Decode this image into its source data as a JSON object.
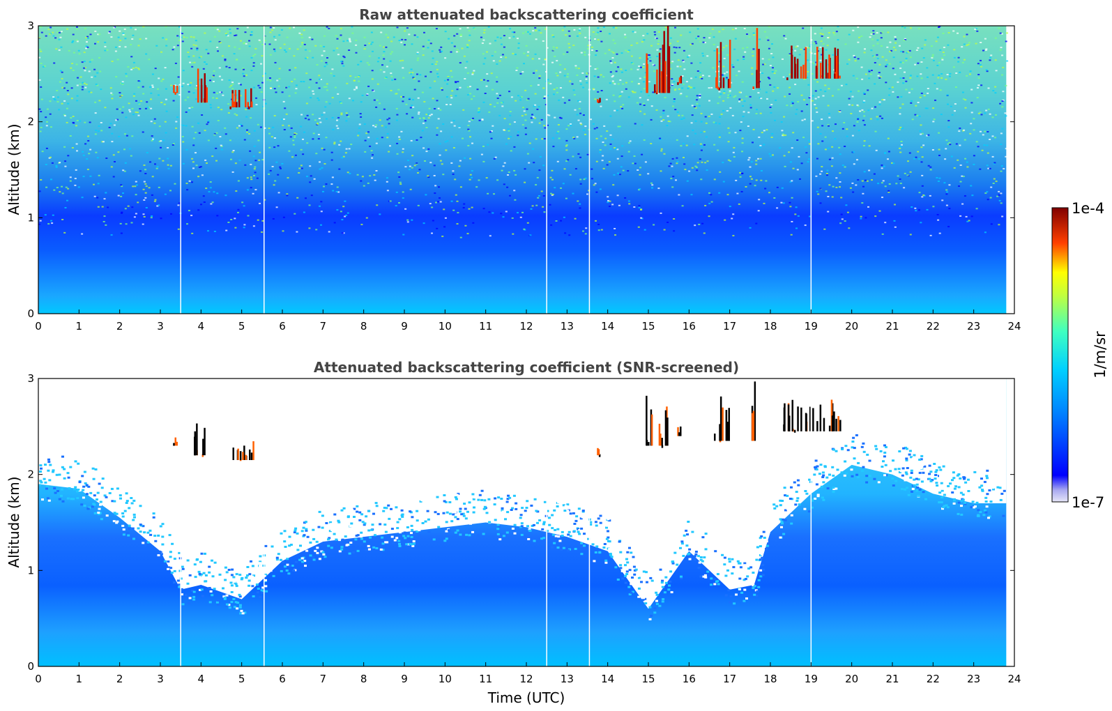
{
  "chart_data": [
    {
      "type": "heatmap",
      "title": "Raw attenuated backscattering coefficient",
      "xlabel": "",
      "ylabel": "Altitude (km)",
      "xlim": [
        0,
        24
      ],
      "ylim": [
        0,
        3
      ],
      "xticks": [
        "0",
        "1",
        "2",
        "3",
        "4",
        "5",
        "6",
        "7",
        "8",
        "9",
        "10",
        "11",
        "12",
        "13",
        "14",
        "15",
        "16",
        "17",
        "18",
        "19",
        "20",
        "21",
        "22",
        "23",
        "24"
      ],
      "yticks": [
        "0",
        "1",
        "2",
        "3"
      ],
      "data_end_time": 23.8,
      "data_gaps_utc": [
        3.5,
        5.55,
        12.5,
        13.55,
        19.0
      ],
      "cloud_features": [
        {
          "t_start": 3.3,
          "t_end": 3.4,
          "alt_base_km": 2.3,
          "alt_top_km": 2.4
        },
        {
          "t_start": 3.8,
          "t_end": 4.2,
          "alt_base_km": 2.2,
          "alt_top_km": 2.6
        },
        {
          "t_start": 4.7,
          "t_end": 5.3,
          "alt_base_km": 2.15,
          "alt_top_km": 2.35
        },
        {
          "t_start": 13.7,
          "t_end": 13.8,
          "alt_base_km": 2.2,
          "alt_top_km": 2.3
        },
        {
          "t_start": 14.9,
          "t_end": 15.5,
          "alt_base_km": 2.3,
          "alt_top_km": 3.0
        },
        {
          "t_start": 15.7,
          "t_end": 15.8,
          "alt_base_km": 2.4,
          "alt_top_km": 2.5
        },
        {
          "t_start": 16.6,
          "t_end": 17.0,
          "alt_base_km": 2.35,
          "alt_top_km": 2.9
        },
        {
          "t_start": 17.5,
          "t_end": 17.7,
          "alt_base_km": 2.35,
          "alt_top_km": 3.0
        },
        {
          "t_start": 18.3,
          "t_end": 19.7,
          "alt_base_km": 2.45,
          "alt_top_km": 2.8
        }
      ]
    },
    {
      "type": "heatmap",
      "title": "Attenuated backscattering coefficient (SNR-screened)",
      "xlabel": "Time (UTC)",
      "ylabel": "Altitude (km)",
      "xlim": [
        0,
        24
      ],
      "ylim": [
        0,
        3
      ],
      "xticks": [
        "0",
        "1",
        "2",
        "3",
        "4",
        "5",
        "6",
        "7",
        "8",
        "9",
        "10",
        "11",
        "12",
        "13",
        "14",
        "15",
        "16",
        "17",
        "18",
        "19",
        "20",
        "21",
        "22",
        "23",
        "24"
      ],
      "yticks": [
        "0",
        "1",
        "2",
        "3"
      ],
      "data_end_time": 23.8,
      "data_gaps_utc": [
        3.5,
        5.55,
        12.5,
        13.55,
        19.0
      ],
      "screened_top_profile_km": [
        [
          0,
          1.9
        ],
        [
          1,
          1.85
        ],
        [
          2,
          1.55
        ],
        [
          3,
          1.2
        ],
        [
          3.5,
          0.8
        ],
        [
          4,
          0.85
        ],
        [
          5,
          0.7
        ],
        [
          6,
          1.1
        ],
        [
          7,
          1.3
        ],
        [
          8,
          1.35
        ],
        [
          9,
          1.4
        ],
        [
          10,
          1.45
        ],
        [
          11,
          1.5
        ],
        [
          12,
          1.45
        ],
        [
          13,
          1.35
        ],
        [
          14,
          1.2
        ],
        [
          15,
          0.6
        ],
        [
          16,
          1.2
        ],
        [
          17,
          0.8
        ],
        [
          17.6,
          0.85
        ],
        [
          18,
          1.4
        ],
        [
          19,
          1.8
        ],
        [
          20,
          2.1
        ],
        [
          21,
          2.0
        ],
        [
          22,
          1.8
        ],
        [
          23,
          1.7
        ],
        [
          23.8,
          1.7
        ]
      ],
      "cloud_features": [
        {
          "t_start": 3.3,
          "t_end": 3.4,
          "alt_base_km": 2.3,
          "alt_top_km": 2.4
        },
        {
          "t_start": 3.8,
          "t_end": 4.2,
          "alt_base_km": 2.2,
          "alt_top_km": 2.6
        },
        {
          "t_start": 4.7,
          "t_end": 5.3,
          "alt_base_km": 2.15,
          "alt_top_km": 2.35
        },
        {
          "t_start": 13.7,
          "t_end": 13.8,
          "alt_base_km": 2.2,
          "alt_top_km": 2.3
        },
        {
          "t_start": 14.9,
          "t_end": 15.5,
          "alt_base_km": 2.3,
          "alt_top_km": 3.0
        },
        {
          "t_start": 15.7,
          "t_end": 15.8,
          "alt_base_km": 2.4,
          "alt_top_km": 2.5
        },
        {
          "t_start": 16.6,
          "t_end": 17.0,
          "alt_base_km": 2.35,
          "alt_top_km": 2.9
        },
        {
          "t_start": 17.5,
          "t_end": 17.7,
          "alt_base_km": 2.35,
          "alt_top_km": 3.0
        },
        {
          "t_start": 18.3,
          "t_end": 19.7,
          "alt_base_km": 2.45,
          "alt_top_km": 2.8
        }
      ]
    }
  ],
  "colorbar": {
    "label": "1/m/sr",
    "max_label": "1e-4",
    "min_label": "1e-7",
    "scale": "log",
    "colormap": "jet",
    "colors": [
      "#e6e6f7",
      "#0000ff",
      "#00c8ff",
      "#80ff80",
      "#ffff00",
      "#ff4000",
      "#800000"
    ]
  }
}
